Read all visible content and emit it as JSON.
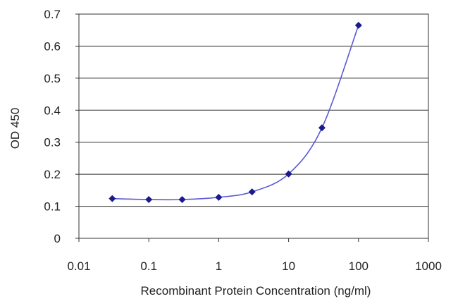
{
  "chart_data": {
    "type": "scatter",
    "title": "",
    "xlabel": "Recombinant Protein Concentration (ng/ml)",
    "ylabel": "OD 450",
    "x_scale": "log",
    "xlim": [
      0.01,
      1000
    ],
    "ylim": [
      0,
      0.7
    ],
    "x_ticks": [
      0.01,
      0.1,
      1,
      10,
      100,
      1000
    ],
    "x_tick_labels": [
      "0.01",
      "0.1",
      "1",
      "10",
      "100",
      "1000"
    ],
    "y_ticks": [
      0,
      0.1,
      0.2,
      0.3,
      0.4,
      0.5,
      0.6,
      0.7
    ],
    "y_tick_labels": [
      "0",
      "0.1",
      "0.2",
      "0.3",
      "0.4",
      "0.5",
      "0.6",
      "0.7"
    ],
    "grid": "horizontal",
    "legend": "none",
    "series": [
      {
        "x": [
          0.03,
          0.1,
          0.3,
          1,
          3,
          10,
          30,
          100
        ],
        "y": [
          0.124,
          0.121,
          0.121,
          0.128,
          0.145,
          0.201,
          0.345,
          0.665
        ],
        "marker": "diamond",
        "fit_line": "smooth"
      }
    ],
    "colors": {
      "series": "#1a1a8c",
      "line": "#5a5ad6",
      "grid": "#333333",
      "axis": "#333333"
    }
  }
}
